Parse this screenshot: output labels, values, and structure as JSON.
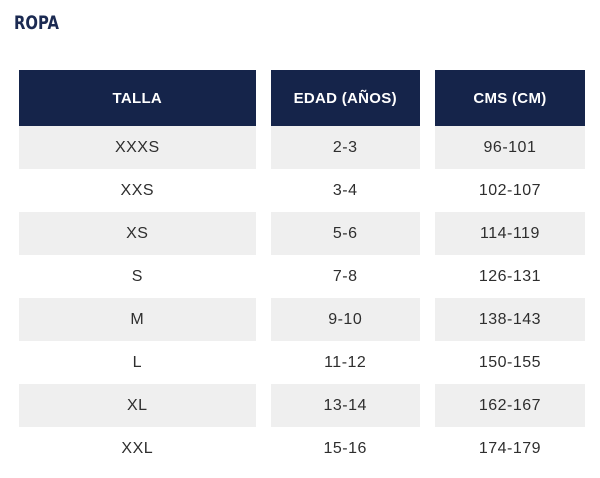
{
  "title": "ROPA",
  "table": {
    "headers": [
      "TALLA",
      "EDAD (AÑOS)",
      "CMS (CM)"
    ],
    "rows": [
      [
        "XXXS",
        "2-3",
        "96-101"
      ],
      [
        "XXS",
        "3-4",
        "102-107"
      ],
      [
        "XS",
        "5-6",
        "114-119"
      ],
      [
        "S",
        "7-8",
        "126-131"
      ],
      [
        "M",
        "9-10",
        "138-143"
      ],
      [
        "L",
        "11-12",
        "150-155"
      ],
      [
        "XL",
        "13-14",
        "162-167"
      ],
      [
        "XXL",
        "15-16",
        "174-179"
      ]
    ]
  },
  "colors": {
    "header_bg": "#15244a",
    "title_text": "#1b2a52",
    "shaded_row": "#efefef"
  }
}
